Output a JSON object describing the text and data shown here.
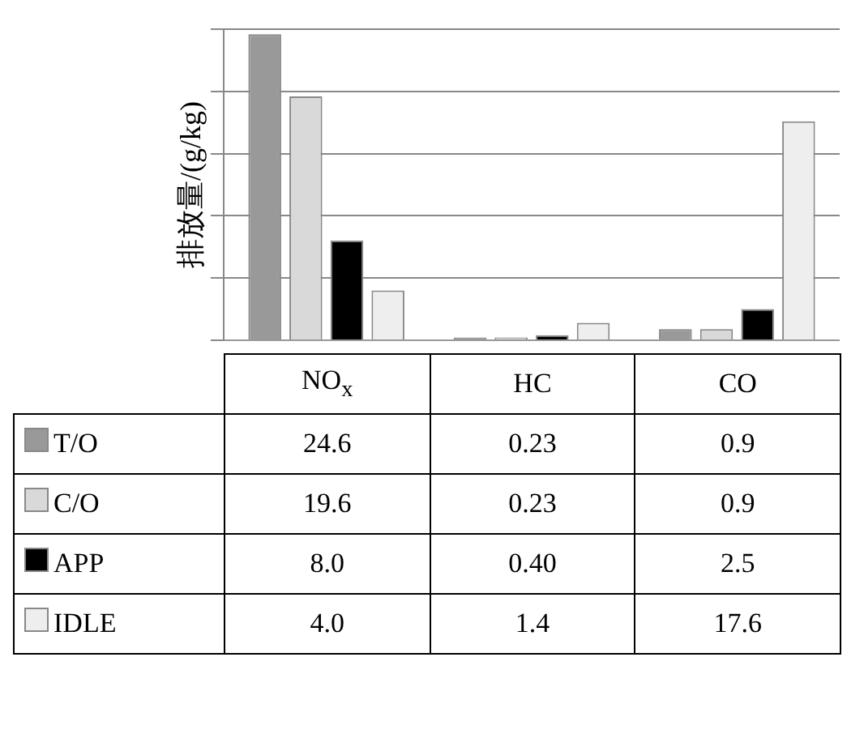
{
  "chart_data": {
    "type": "bar",
    "ylabel": "排放量/(g/kg)",
    "categories": [
      "NO$_{x}$",
      "HC",
      "CO"
    ],
    "series": [
      {
        "name": "T/O",
        "color": "#999999",
        "values": [
          24.6,
          0.23,
          0.9
        ],
        "value_labels": [
          "24.6",
          "0.23",
          "0.9"
        ]
      },
      {
        "name": "C/O",
        "color": "#d9d9d9",
        "values": [
          19.6,
          0.23,
          0.9
        ],
        "value_labels": [
          "19.6",
          "0.23",
          "0.9"
        ]
      },
      {
        "name": "APP",
        "color": "#000000",
        "values": [
          8.0,
          0.4,
          2.5
        ],
        "value_labels": [
          "8.0",
          "0.40",
          "2.5"
        ]
      },
      {
        "name": "IDLE",
        "color": "#eeeeee",
        "values": [
          4.0,
          1.4,
          17.6
        ],
        "value_labels": [
          "4.0",
          "1.4",
          "17.6"
        ]
      }
    ],
    "ylim": [
      0,
      25
    ],
    "yticks": [
      {
        "value": 0,
        "label": null
      },
      {
        "value": 5,
        "label": null
      },
      {
        "value": 10,
        "label": null
      },
      {
        "value": 15,
        "label": null
      },
      {
        "value": 20,
        "label": null
      },
      {
        "value": 25,
        "label": null
      }
    ],
    "grid": "y",
    "tick_labels": "x",
    "legend": "bottom"
  }
}
